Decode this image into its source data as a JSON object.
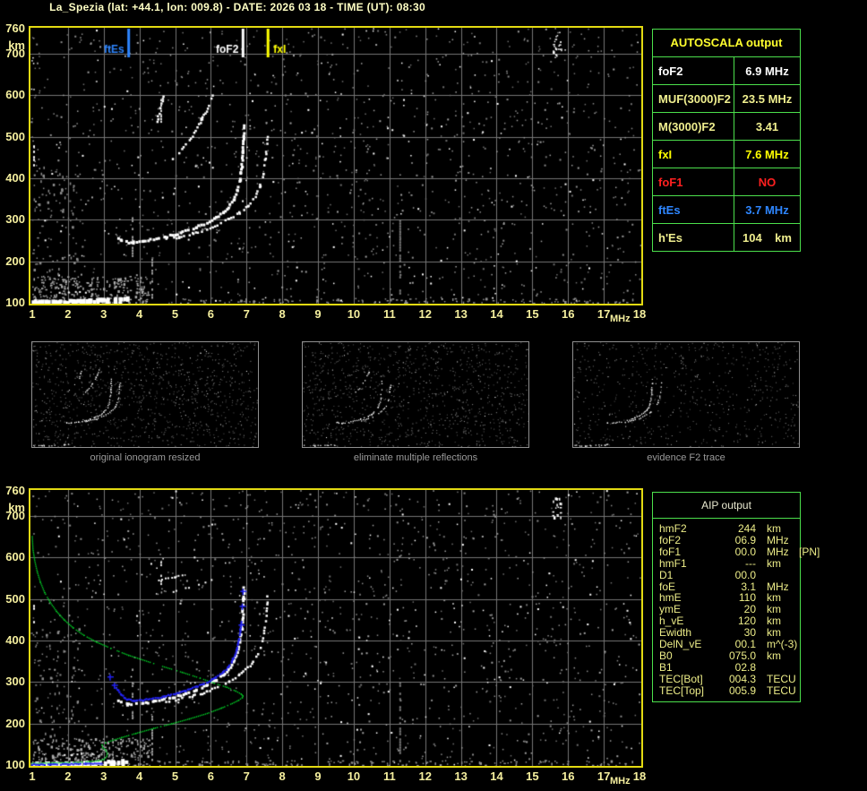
{
  "title": "La_Spezia (lat: +44.1, lon: 009.8) - DATE: 2026 03 18 - TIME (UT): 08:30",
  "colors": {
    "background": "#000000",
    "title_text": "#ffffc4",
    "axis_text": "#f5ef9e",
    "plot_border": "#e3da12",
    "grid": "#767676",
    "table_border": "#4ce04c",
    "signal_white": "#ffffff",
    "noise_gray": "#8a8a8a",
    "profile_green": "#00d227",
    "restored_blue": "#2222f0",
    "marker_blue": "#2e86ff",
    "marker_yellow": "#ffff00",
    "alert_red": "#ff2020",
    "pale_yellow": "#f0ef8f"
  },
  "autoscala": {
    "title": "AUTOSCALA output",
    "title_color": "#ffff2e",
    "rows": [
      {
        "param": "foF2",
        "value": "6.9 MHz",
        "color": "#ffffff"
      },
      {
        "param": "MUF(3000)F2",
        "value": "23.5 MHz",
        "color": "#f0ef8f"
      },
      {
        "param": "M(3000)F2",
        "value": "3.41",
        "color": "#f0ef8f"
      },
      {
        "param": "fxI",
        "value": "7.6 MHz",
        "color": "#ffff00"
      },
      {
        "param": "foF1",
        "value": "NO",
        "color": "#ff2020"
      },
      {
        "param": "ftEs",
        "value": "3.7 MHz",
        "color": "#2e86ff"
      },
      {
        "param": "h'Es",
        "value": "104    km",
        "color": "#f0ef8f"
      }
    ]
  },
  "aip": {
    "title": "AIP output",
    "title_color": "#e8e8cf",
    "text_color": "#eded88",
    "rows": [
      {
        "param": "hmF2",
        "value": "244",
        "unit": "km",
        "note": ""
      },
      {
        "param": "foF2",
        "value": "06.9",
        "unit": "MHz",
        "note": ""
      },
      {
        "param": "foF1",
        "value": "00.0",
        "unit": "MHz",
        "note": "[PN]"
      },
      {
        "param": "hmF1",
        "value": "---",
        "unit": "km",
        "note": ""
      },
      {
        "param": "D1",
        "value": "00.0",
        "unit": "",
        "note": ""
      },
      {
        "param": "foE",
        "value": "3.1",
        "unit": "MHz",
        "note": ""
      },
      {
        "param": "hmE",
        "value": "110",
        "unit": "km",
        "note": ""
      },
      {
        "param": "ymE",
        "value": "20",
        "unit": "km",
        "note": ""
      },
      {
        "param": "h_vE",
        "value": "120",
        "unit": "km",
        "note": ""
      },
      {
        "param": "Ewidth",
        "value": "30",
        "unit": "km",
        "note": ""
      },
      {
        "param": "DelN_vE",
        "value": "00.1",
        "unit": "m^(-3)",
        "note": ""
      },
      {
        "param": "B0",
        "value": "075.0",
        "unit": "km",
        "note": ""
      },
      {
        "param": "B1",
        "value": "02.8",
        "unit": "",
        "note": ""
      },
      {
        "param": "TEC[Bot]",
        "value": "004.3",
        "unit": "TECU",
        "note": ""
      },
      {
        "param": "TEC[Top]",
        "value": "005.9",
        "unit": "TECU",
        "note": ""
      }
    ]
  },
  "thumbnails": [
    {
      "caption": "original ionogram resized",
      "seed": 21,
      "noise": 1050,
      "traces": [
        "es_layer",
        "f2_ordinary",
        "f2_extraordinary",
        "second_hop",
        "second_hop2"
      ]
    },
    {
      "caption": "eliminate multiple reflections",
      "seed": 22,
      "noise": 980,
      "traces": [
        "es_layer",
        "f2_ordinary",
        "f2_extraordinary",
        "second_hop"
      ]
    },
    {
      "caption": "evidence F2 trace",
      "seed": 23,
      "noise": 600,
      "traces": [
        "es_layer",
        "f2_ordinary",
        "f2_extraordinary"
      ]
    }
  ],
  "chart_data": {
    "type": "scatter",
    "x_label": "MHz",
    "y_label": "km",
    "x_range": [
      1,
      18
    ],
    "h_range": [
      100,
      760
    ],
    "x_ticks": [
      1,
      2,
      3,
      4,
      5,
      6,
      7,
      8,
      9,
      10,
      11,
      12,
      13,
      14,
      15,
      16,
      17,
      18
    ],
    "y_ticks": [
      760,
      700,
      600,
      500,
      400,
      300,
      200,
      100
    ],
    "grid": {
      "x_step": 1,
      "h_step": 100
    },
    "markers": [
      {
        "label": "ftEs",
        "freq_mhz": 3.7,
        "color": "#2e86ff",
        "side": "left"
      },
      {
        "label": "foF2",
        "freq_mhz": 6.9,
        "color": "#ffffff",
        "side": "left"
      },
      {
        "label": "fxI",
        "freq_mhz": 7.6,
        "color": "#ffff00",
        "side": "right"
      }
    ],
    "traces": {
      "es_layer": [
        [
          1.0,
          103
        ],
        [
          1.4,
          102
        ],
        [
          1.8,
          102
        ],
        [
          2.2,
          103
        ],
        [
          2.6,
          104
        ],
        [
          3.0,
          106
        ],
        [
          3.3,
          107
        ],
        [
          3.65,
          109
        ]
      ],
      "es_upper": [
        [
          1.7,
          122
        ],
        [
          2.1,
          124
        ],
        [
          2.5,
          126
        ],
        [
          2.9,
          128
        ]
      ],
      "f2_ordinary": [
        [
          3.35,
          258
        ],
        [
          3.5,
          250
        ],
        [
          3.65,
          246
        ],
        [
          3.85,
          245
        ],
        [
          4.1,
          248
        ],
        [
          4.4,
          253
        ],
        [
          4.7,
          258
        ],
        [
          5.0,
          264
        ],
        [
          5.3,
          272
        ],
        [
          5.6,
          281
        ],
        [
          5.9,
          292
        ],
        [
          6.15,
          304
        ],
        [
          6.35,
          317
        ],
        [
          6.5,
          330
        ],
        [
          6.65,
          348
        ],
        [
          6.75,
          370
        ],
        [
          6.82,
          397
        ],
        [
          6.87,
          428
        ],
        [
          6.9,
          462
        ],
        [
          6.92,
          500
        ],
        [
          6.93,
          528
        ]
      ],
      "f2_extraordinary": [
        [
          4.75,
          252
        ],
        [
          5.1,
          258
        ],
        [
          5.5,
          266
        ],
        [
          5.9,
          276
        ],
        [
          6.2,
          287
        ],
        [
          6.5,
          300
        ],
        [
          6.8,
          316
        ],
        [
          7.05,
          334
        ],
        [
          7.25,
          355
        ],
        [
          7.38,
          380
        ],
        [
          7.47,
          410
        ],
        [
          7.53,
          445
        ],
        [
          7.57,
          478
        ],
        [
          7.59,
          505
        ]
      ],
      "second_hop": [
        [
          4.95,
          448
        ],
        [
          5.2,
          470
        ],
        [
          5.5,
          502
        ],
        [
          5.75,
          540
        ],
        [
          5.95,
          572
        ],
        [
          6.05,
          598
        ]
      ],
      "second_hop2": [
        [
          4.5,
          535
        ],
        [
          4.6,
          568
        ],
        [
          4.67,
          597
        ]
      ],
      "hop_b1": [
        [
          4.55,
          545
        ],
        [
          5.0,
          553
        ],
        [
          5.5,
          565
        ],
        [
          6.0,
          581
        ],
        [
          6.2,
          590
        ]
      ],
      "hop_b2": [
        [
          4.95,
          518
        ],
        [
          5.4,
          528
        ],
        [
          5.85,
          540
        ],
        [
          6.1,
          548
        ]
      ]
    },
    "streaks": [
      {
        "freq": 3.81,
        "h": [
          213,
          332
        ],
        "color": "#9a9a9a"
      },
      {
        "freq": 4.36,
        "h": [
          115,
          225
        ],
        "color": "#9a9a9a"
      },
      {
        "freq": 4.61,
        "h": [
          534,
          597
        ],
        "color": "#d8d8d8"
      },
      {
        "freq": 1.05,
        "h": [
          420,
          492
        ],
        "color": "#ffffff"
      },
      {
        "freq": 11.3,
        "h": [
          110,
          300
        ],
        "color": "#7d7d7d"
      }
    ],
    "clusters": [
      {
        "f": [
          15.55,
          15.8
        ],
        "h": [
          695,
          748
        ],
        "count": 20,
        "color": "#ffffff"
      },
      {
        "f": [
          1.0,
          4.3
        ],
        "h": [
          100,
          165
        ],
        "count": 240,
        "color": "#aaaaaa"
      },
      {
        "f": [
          1.0,
          2.3
        ],
        "h": [
          165,
          430
        ],
        "count": 70,
        "color": "#8a8a8a"
      },
      {
        "f": [
          4.0,
          17.8
        ],
        "h": [
          100,
          112
        ],
        "count": 130,
        "color": "#909090"
      }
    ],
    "noise": {
      "gray": 1250,
      "white": 200
    },
    "panels": {
      "top": {
        "seed": 7,
        "markers": true,
        "overlays": false,
        "traces": [
          "es_layer",
          "es_upper",
          "f2_ordinary",
          "f2_extraordinary",
          "second_hop",
          "second_hop2"
        ]
      },
      "bottom": {
        "seed": 13,
        "markers": false,
        "overlays": true,
        "traces": [
          "es_layer",
          "es_upper",
          "f2_ordinary",
          "f2_extraordinary",
          "hop_b1",
          "hop_b2"
        ]
      }
    },
    "overlays": {
      "profile_green": [
        [
          1.0,
          104
        ],
        [
          1.6,
          105
        ],
        [
          2.2,
          106
        ],
        [
          2.6,
          108
        ],
        [
          2.85,
          110
        ],
        [
          3.0,
          113
        ],
        [
          3.08,
          120
        ],
        [
          3.1,
          128
        ],
        [
          3.05,
          136
        ],
        [
          2.97,
          142
        ],
        [
          2.96,
          148
        ],
        [
          3.05,
          153
        ],
        [
          3.2,
          158
        ],
        [
          3.5,
          166
        ],
        [
          3.9,
          176
        ],
        [
          4.4,
          188
        ],
        [
          4.9,
          199
        ],
        [
          5.4,
          211
        ],
        [
          5.9,
          224
        ],
        [
          6.3,
          237
        ],
        [
          6.6,
          248
        ],
        [
          6.78,
          256
        ],
        [
          6.88,
          262
        ],
        [
          6.9,
          266
        ],
        [
          6.85,
          271
        ],
        [
          6.7,
          278
        ],
        [
          6.45,
          287
        ],
        [
          6.1,
          297
        ],
        [
          5.7,
          309
        ],
        [
          5.2,
          323
        ],
        [
          4.7,
          336
        ],
        [
          4.2,
          350
        ],
        [
          3.7,
          364
        ],
        [
          3.2,
          381
        ],
        [
          2.8,
          396
        ],
        [
          2.45,
          412
        ],
        [
          2.15,
          430
        ],
        [
          1.9,
          449
        ],
        [
          1.68,
          470
        ],
        [
          1.5,
          492
        ],
        [
          1.35,
          515
        ],
        [
          1.23,
          540
        ],
        [
          1.14,
          565
        ],
        [
          1.07,
          592
        ],
        [
          1.02,
          620
        ],
        [
          1.0,
          650
        ]
      ],
      "blue_es": [
        [
          1.0,
          101
        ],
        [
          1.5,
          101
        ],
        [
          2.0,
          102
        ],
        [
          2.5,
          103
        ],
        [
          2.95,
          104
        ]
      ],
      "blue_f": [
        [
          3.35,
          285
        ],
        [
          3.5,
          268
        ],
        [
          3.65,
          258
        ],
        [
          3.85,
          254
        ],
        [
          4.1,
          256
        ],
        [
          4.4,
          260
        ],
        [
          4.7,
          265
        ],
        [
          5.0,
          271
        ],
        [
          5.3,
          279
        ],
        [
          5.6,
          288
        ],
        [
          5.9,
          299
        ],
        [
          6.15,
          311
        ],
        [
          6.35,
          324
        ],
        [
          6.5,
          337
        ],
        [
          6.62,
          354
        ],
        [
          6.72,
          375
        ],
        [
          6.79,
          400
        ],
        [
          6.83,
          425
        ],
        [
          6.86,
          448
        ]
      ],
      "blue_marks": [
        [
          3.18,
          312
        ],
        [
          3.3,
          292
        ],
        [
          6.85,
          437
        ],
        [
          6.88,
          482
        ],
        [
          6.9,
          518
        ]
      ]
    }
  }
}
